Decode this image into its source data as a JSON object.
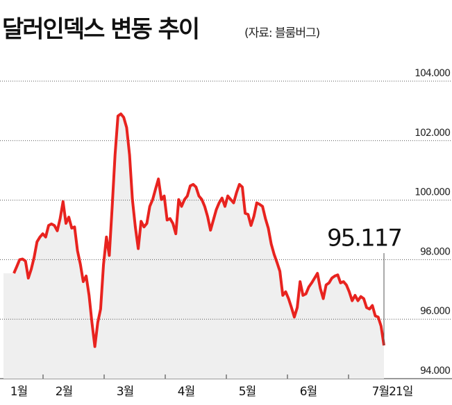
{
  "chart_data": {
    "type": "area-line",
    "title": "달러인덱스 변동 추이",
    "subtitle": "(자료: 블룸버그)",
    "x_labels": [
      "1월",
      "2월",
      "3월",
      "4월",
      "5월",
      "6월",
      "7월21일"
    ],
    "values": [
      97.54,
      97.77,
      98.0,
      98.02,
      97.95,
      97.38,
      97.68,
      98.07,
      98.6,
      98.76,
      98.87,
      98.76,
      99.15,
      99.2,
      99.15,
      98.97,
      99.38,
      99.95,
      99.22,
      99.43,
      99.06,
      99.1,
      98.3,
      97.84,
      97.26,
      97.45,
      96.8,
      95.89,
      95.08,
      95.89,
      96.34,
      97.84,
      98.76,
      98.14,
      99.79,
      101.52,
      102.83,
      102.9,
      102.78,
      102.44,
      101.52,
      100.02,
      99.1,
      98.37,
      99.29,
      99.1,
      99.22,
      99.79,
      100.02,
      100.37,
      100.71,
      100.02,
      100.14,
      99.33,
      99.38,
      99.22,
      98.87,
      100.02,
      99.79,
      100.02,
      100.14,
      100.48,
      100.53,
      100.44,
      100.14,
      100.02,
      99.79,
      99.45,
      98.99,
      99.33,
      99.68,
      99.91,
      100.07,
      99.79,
      100.14,
      100.02,
      99.91,
      100.25,
      100.53,
      100.44,
      99.56,
      99.52,
      99.15,
      99.45,
      99.91,
      99.86,
      99.79,
      99.38,
      99.06,
      98.53,
      98.18,
      97.91,
      97.61,
      96.8,
      96.92,
      96.69,
      96.39,
      96.07,
      96.39,
      97.26,
      96.8,
      96.85,
      97.08,
      97.22,
      97.38,
      97.54,
      97.03,
      96.69,
      97.15,
      97.22,
      97.38,
      97.45,
      97.49,
      97.22,
      97.26,
      97.15,
      96.92,
      96.62,
      96.8,
      96.62,
      96.76,
      96.69,
      96.39,
      96.34,
      96.46,
      96.11,
      96.07,
      95.77,
      95.117
    ],
    "color": "#e8231f",
    "fill": "#efefef",
    "ylim": [
      94,
      104
    ],
    "yticks": [
      {
        "value": 94,
        "label": "94.000"
      },
      {
        "value": 96,
        "label": "96.000"
      },
      {
        "value": 98,
        "label": "98.000"
      },
      {
        "value": 100,
        "label": "100.000"
      },
      {
        "value": 102,
        "label": "102.000"
      },
      {
        "value": 104,
        "label": "104.000"
      }
    ],
    "grid": true
  }
}
